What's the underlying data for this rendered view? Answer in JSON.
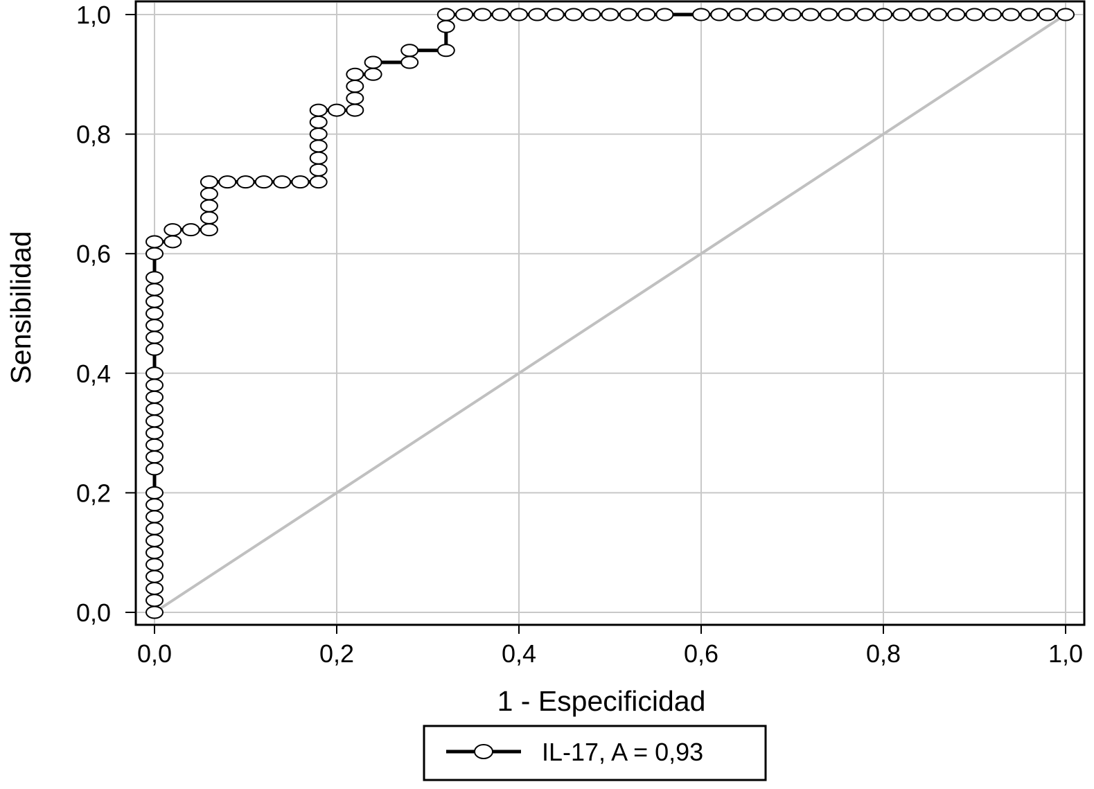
{
  "chart_data": {
    "type": "line",
    "title": "",
    "xlabel": "1 - Especificidad",
    "ylabel": "Sensibilidad",
    "xlim": [
      0,
      1
    ],
    "ylim": [
      0,
      1
    ],
    "grid": true,
    "legend_position": "bottom-center",
    "x_ticks": [
      "0,0",
      "0,2",
      "0,4",
      "0,6",
      "0,8",
      "1,0"
    ],
    "y_ticks": [
      "0,0",
      "0,2",
      "0,4",
      "0,6",
      "0,8",
      "1,0"
    ],
    "colors": {
      "curve": "#000000",
      "marker_fill": "#ffffff",
      "reference": "#c0c0c0",
      "grid": "#c8c8c8"
    },
    "series": [
      {
        "name": "IL-17, A = 0,93",
        "marker": "open-circle",
        "points": [
          [
            0,
            0
          ],
          [
            0,
            0.02
          ],
          [
            0,
            0.04
          ],
          [
            0,
            0.06
          ],
          [
            0,
            0.08
          ],
          [
            0,
            0.1
          ],
          [
            0,
            0.12
          ],
          [
            0,
            0.14
          ],
          [
            0,
            0.16
          ],
          [
            0,
            0.18
          ],
          [
            0,
            0.2
          ],
          [
            0,
            0.24
          ],
          [
            0,
            0.26
          ],
          [
            0,
            0.28
          ],
          [
            0,
            0.3
          ],
          [
            0,
            0.32
          ],
          [
            0,
            0.34
          ],
          [
            0,
            0.36
          ],
          [
            0,
            0.38
          ],
          [
            0,
            0.4
          ],
          [
            0,
            0.44
          ],
          [
            0,
            0.46
          ],
          [
            0,
            0.48
          ],
          [
            0,
            0.5
          ],
          [
            0,
            0.52
          ],
          [
            0,
            0.54
          ],
          [
            0,
            0.56
          ],
          [
            0,
            0.6
          ],
          [
            0,
            0.62
          ],
          [
            0.02,
            0.62
          ],
          [
            0.02,
            0.64
          ],
          [
            0.04,
            0.64
          ],
          [
            0.06,
            0.64
          ],
          [
            0.06,
            0.66
          ],
          [
            0.06,
            0.68
          ],
          [
            0.06,
            0.7
          ],
          [
            0.06,
            0.72
          ],
          [
            0.08,
            0.72
          ],
          [
            0.1,
            0.72
          ],
          [
            0.12,
            0.72
          ],
          [
            0.14,
            0.72
          ],
          [
            0.16,
            0.72
          ],
          [
            0.18,
            0.72
          ],
          [
            0.18,
            0.74
          ],
          [
            0.18,
            0.76
          ],
          [
            0.18,
            0.78
          ],
          [
            0.18,
            0.8
          ],
          [
            0.18,
            0.82
          ],
          [
            0.18,
            0.84
          ],
          [
            0.2,
            0.84
          ],
          [
            0.22,
            0.84
          ],
          [
            0.22,
            0.86
          ],
          [
            0.22,
            0.88
          ],
          [
            0.22,
            0.9
          ],
          [
            0.24,
            0.9
          ],
          [
            0.24,
            0.92
          ],
          [
            0.28,
            0.92
          ],
          [
            0.28,
            0.94
          ],
          [
            0.32,
            0.94
          ],
          [
            0.32,
            0.98
          ],
          [
            0.32,
            1.0
          ],
          [
            0.34,
            1.0
          ],
          [
            0.36,
            1.0
          ],
          [
            0.38,
            1.0
          ],
          [
            0.4,
            1.0
          ],
          [
            0.42,
            1.0
          ],
          [
            0.44,
            1.0
          ],
          [
            0.46,
            1.0
          ],
          [
            0.48,
            1.0
          ],
          [
            0.5,
            1.0
          ],
          [
            0.52,
            1.0
          ],
          [
            0.54,
            1.0
          ],
          [
            0.56,
            1.0
          ],
          [
            0.6,
            1.0
          ],
          [
            0.62,
            1.0
          ],
          [
            0.64,
            1.0
          ],
          [
            0.66,
            1.0
          ],
          [
            0.68,
            1.0
          ],
          [
            0.7,
            1.0
          ],
          [
            0.72,
            1.0
          ],
          [
            0.74,
            1.0
          ],
          [
            0.76,
            1.0
          ],
          [
            0.78,
            1.0
          ],
          [
            0.8,
            1.0
          ],
          [
            0.82,
            1.0
          ],
          [
            0.84,
            1.0
          ],
          [
            0.86,
            1.0
          ],
          [
            0.88,
            1.0
          ],
          [
            0.9,
            1.0
          ],
          [
            0.92,
            1.0
          ],
          [
            0.94,
            1.0
          ],
          [
            0.96,
            1.0
          ],
          [
            0.98,
            1.0
          ],
          [
            1.0,
            1.0
          ]
        ]
      },
      {
        "name": "",
        "role": "reference-diagonal",
        "points": [
          [
            0,
            0
          ],
          [
            1,
            1
          ]
        ]
      }
    ]
  }
}
